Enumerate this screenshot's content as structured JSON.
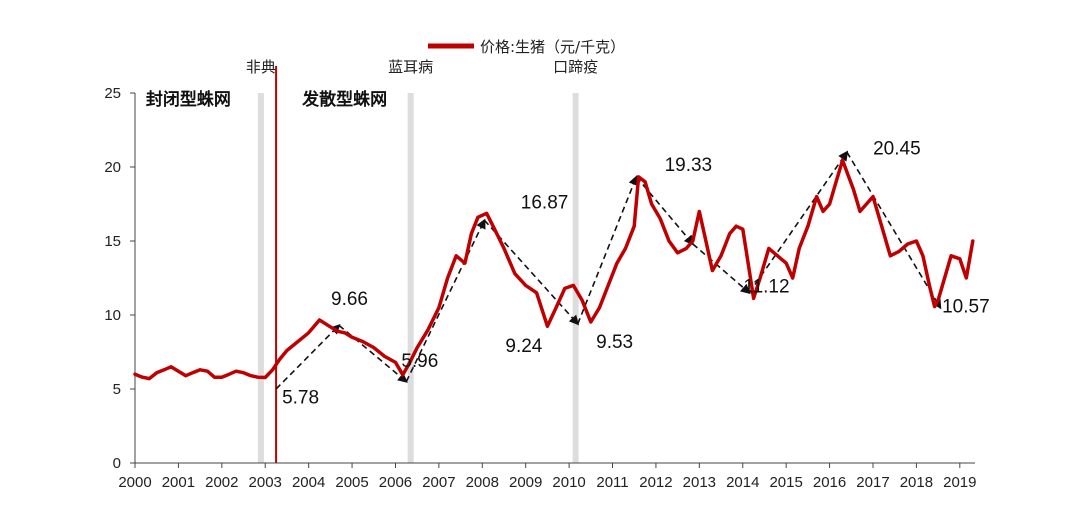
{
  "chart_data": {
    "type": "line",
    "series": [
      {
        "name": "价格:生猪（元/千克）",
        "color": "#c00000",
        "x": [
          2000.0,
          2000.17,
          2000.33,
          2000.5,
          2000.67,
          2000.83,
          2001.0,
          2001.17,
          2001.33,
          2001.5,
          2001.67,
          2001.83,
          2002.0,
          2002.17,
          2002.33,
          2002.5,
          2002.67,
          2002.83,
          2003.0,
          2003.17,
          2003.33,
          2003.5,
          2003.75,
          2004.0,
          2004.25,
          2004.5,
          2004.67,
          2004.83,
          2005.0,
          2005.25,
          2005.5,
          2005.75,
          2006.0,
          2006.17,
          2006.33,
          2006.5,
          2006.75,
          2007.0,
          2007.2,
          2007.4,
          2007.6,
          2007.75,
          2007.9,
          2008.1,
          2008.25,
          2008.5,
          2008.75,
          2009.0,
          2009.25,
          2009.5,
          2009.7,
          2009.9,
          2010.1,
          2010.3,
          2010.5,
          2010.7,
          2010.9,
          2011.1,
          2011.3,
          2011.5,
          2011.6,
          2011.75,
          2011.9,
          2012.1,
          2012.3,
          2012.5,
          2012.7,
          2012.85,
          2013.0,
          2013.15,
          2013.3,
          2013.5,
          2013.7,
          2013.85,
          2014.0,
          2014.15,
          2014.25,
          2014.4,
          2014.6,
          2014.8,
          2015.0,
          2015.15,
          2015.3,
          2015.5,
          2015.7,
          2015.85,
          2016.0,
          2016.15,
          2016.3,
          2016.42,
          2016.55,
          2016.7,
          2016.85,
          2017.0,
          2017.2,
          2017.4,
          2017.6,
          2017.8,
          2018.0,
          2018.15,
          2018.3,
          2018.42,
          2018.5,
          2018.65,
          2018.8,
          2019.0,
          2019.15,
          2019.3
        ],
        "values": [
          6.0,
          5.8,
          5.7,
          6.1,
          6.3,
          6.5,
          6.2,
          5.9,
          6.1,
          6.3,
          6.2,
          5.8,
          5.8,
          6.0,
          6.2,
          6.1,
          5.9,
          5.8,
          5.78,
          6.3,
          7.0,
          7.6,
          8.2,
          8.8,
          9.66,
          9.2,
          8.9,
          8.8,
          8.5,
          8.2,
          7.8,
          7.2,
          6.8,
          5.96,
          6.8,
          7.8,
          9.0,
          10.5,
          12.5,
          14.0,
          13.5,
          15.5,
          16.6,
          16.87,
          16.0,
          14.5,
          12.8,
          12.0,
          11.5,
          9.24,
          10.5,
          11.8,
          12.0,
          11.0,
          9.53,
          10.5,
          12.0,
          13.5,
          14.5,
          16.0,
          19.33,
          19.0,
          17.5,
          16.5,
          15.0,
          14.2,
          14.5,
          15.0,
          17.0,
          15.0,
          13.0,
          14.0,
          15.5,
          16.0,
          15.8,
          13.0,
          11.12,
          12.5,
          14.5,
          14.0,
          13.5,
          12.5,
          14.5,
          16.0,
          18.0,
          17.0,
          17.5,
          19.0,
          20.45,
          19.5,
          18.5,
          17.0,
          17.5,
          18.0,
          16.0,
          14.0,
          14.3,
          14.8,
          15.0,
          14.0,
          12.0,
          10.57,
          11.0,
          12.5,
          14.0,
          13.8,
          12.5,
          15.0
        ]
      }
    ],
    "data_labels": [
      {
        "x": 2003.25,
        "y": 5.78,
        "text": "5.78"
      },
      {
        "x": 2004.7,
        "y": 9.66,
        "text": "9.66"
      },
      {
        "x": 2006.25,
        "y": 5.96,
        "text": "5.96"
      },
      {
        "x": 2008.15,
        "y": 16.87,
        "text": "16.87"
      },
      {
        "x": 2009.5,
        "y": 9.24,
        "text": "9.24"
      },
      {
        "x": 2010.3,
        "y": 9.53,
        "text": "9.53"
      },
      {
        "x": 2011.6,
        "y": 19.33,
        "text": "19.33"
      },
      {
        "x": 2014.2,
        "y": 11.12,
        "text": "11.12"
      },
      {
        "x": 2016.45,
        "y": 20.45,
        "text": "20.45"
      },
      {
        "x": 2018.5,
        "y": 10.57,
        "text": "10.57"
      }
    ],
    "trend_arrows": [
      {
        "from": [
          2003.25,
          5.0
        ],
        "to": [
          2004.7,
          9.3
        ]
      },
      {
        "from": [
          2004.7,
          9.3
        ],
        "to": [
          2006.25,
          5.5
        ]
      },
      {
        "from": [
          2006.25,
          5.5
        ],
        "to": [
          2008.05,
          16.4
        ]
      },
      {
        "from": [
          2008.05,
          16.4
        ],
        "to": [
          2010.2,
          9.4
        ]
      },
      {
        "from": [
          2010.2,
          9.4
        ],
        "to": [
          2011.55,
          19.33
        ]
      },
      {
        "from": [
          2011.55,
          19.33
        ],
        "to": [
          2012.85,
          14.8
        ]
      },
      {
        "from": [
          2012.85,
          14.8
        ],
        "to": [
          2014.15,
          11.5
        ]
      },
      {
        "from": [
          2014.15,
          11.5
        ],
        "to": [
          2016.4,
          21.0
        ]
      },
      {
        "from": [
          2016.4,
          21.0
        ],
        "to": [
          2018.55,
          10.5
        ]
      }
    ],
    "events": [
      {
        "label": "非典",
        "x": 2002.9
      },
      {
        "label": "蓝耳病",
        "x": 2006.35
      },
      {
        "label": "口蹄疫",
        "x": 2010.15
      }
    ],
    "divider": {
      "x": 2003.25,
      "color": "#c00000"
    },
    "regions": [
      {
        "label": "封闭型蛛网",
        "x": 2000.25
      },
      {
        "label": "发散型蛛网",
        "x": 2003.85
      }
    ],
    "x_ticks": [
      "2000",
      "2001",
      "2002",
      "2003",
      "2004",
      "2005",
      "2006",
      "2007",
      "2008",
      "2009",
      "2010",
      "2011",
      "2012",
      "2013",
      "2014",
      "2015",
      "2016",
      "2017",
      "2018",
      "2019"
    ],
    "y_ticks": [
      "0",
      "5",
      "10",
      "15",
      "20",
      "25"
    ],
    "xlim": [
      2000,
      2019.35
    ],
    "ylim": [
      0,
      25
    ],
    "legend": "top-center",
    "grid": false
  }
}
